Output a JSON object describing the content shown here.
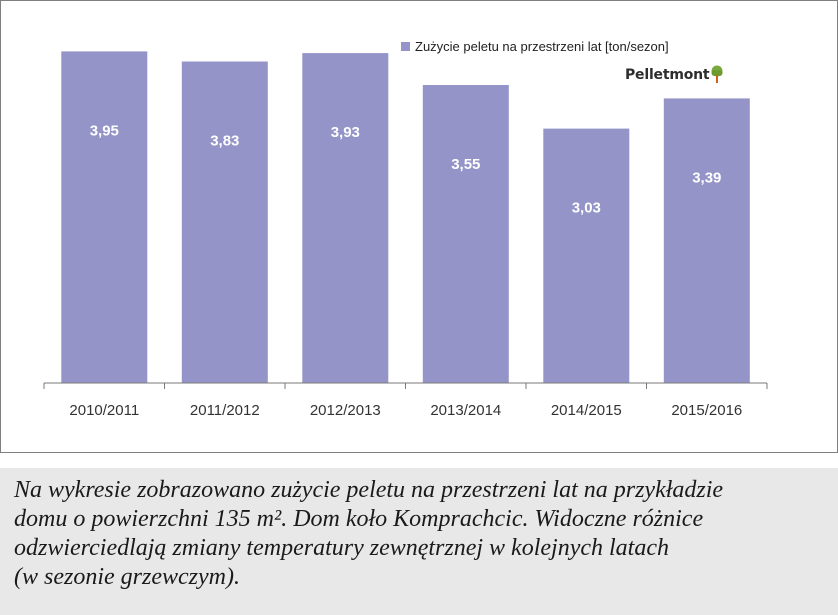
{
  "legend": {
    "label": "Zużycie peletu na przestrzeni lat  [ton/sezon]"
  },
  "logo": {
    "text": "Pelletmont"
  },
  "colors": {
    "bar": "#9494c9",
    "axis": "#7a7a7a",
    "label": "#ffffff",
    "caption_bg": "#e8e8e8"
  },
  "chart_data": {
    "type": "bar",
    "categories": [
      "2010/2011",
      "2011/2012",
      "2012/2013",
      "2013/2014",
      "2014/2015",
      "2015/2016"
    ],
    "series": [
      {
        "name": "Zużycie peletu na przestrzeni lat  [ton/sezon]",
        "values": [
          3.95,
          3.83,
          3.93,
          3.55,
          3.03,
          3.39
        ],
        "labels": [
          "3,95",
          "3,83",
          "3,93",
          "3,55",
          "3,03",
          "3,39"
        ]
      }
    ],
    "ylim": [
      0,
      4.3
    ],
    "legend_position": "top-right",
    "grid": false
  },
  "caption": {
    "text": "Na wykresie zobrazowano zużycie peletu na przestrzeni lat na przykładzie\ndomu o powierzchni 135 m². Dom koło Komprachcic. Widoczne różnice\nodzwierciedlają zmiany temperatury zewnętrznej w kolejnych latach\n(w sezonie grzewczym)."
  }
}
